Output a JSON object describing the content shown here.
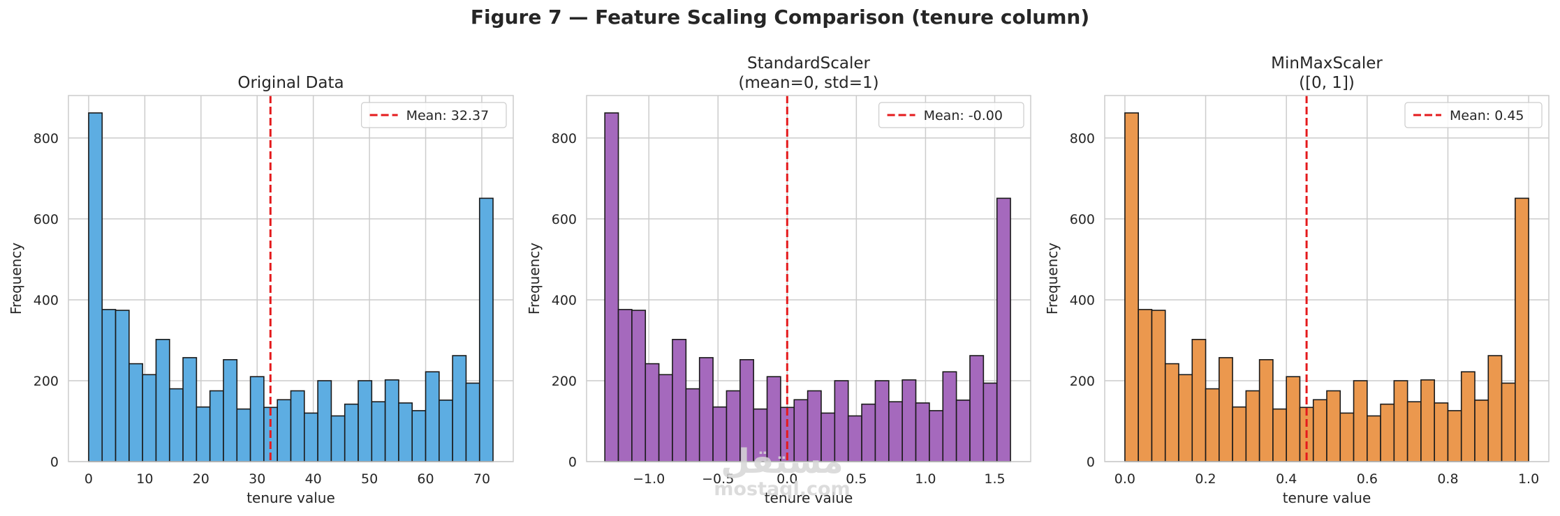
{
  "figure_title": "Figure 7 — Feature Scaling Comparison (tenure column)",
  "watermark": {
    "arabic": "مستقل",
    "latin": "mostaql.com"
  },
  "colors": {
    "mean_line": "#e41a1c",
    "grid": "#cccccc",
    "axes_edge": "#cccccc",
    "bar_edge": "#1a1a1a"
  },
  "chart_data": [
    {
      "type": "bar",
      "title": "Original Data",
      "xlabel": "tenure value",
      "ylabel": "Frequency",
      "color": "#5dade2",
      "xlim": [
        -3.6,
        75.6
      ],
      "ylim": [
        0,
        905
      ],
      "xticks": [
        0,
        10,
        20,
        30,
        40,
        50,
        60,
        70
      ],
      "xtick_labels": [
        "0",
        "10",
        "20",
        "30",
        "40",
        "50",
        "60",
        "70"
      ],
      "yticks": [
        0,
        200,
        400,
        600,
        800
      ],
      "ytick_labels": [
        "0",
        "200",
        "400",
        "600",
        "800"
      ],
      "bin_start": 0,
      "bin_end": 72,
      "counts": [
        862,
        376,
        374,
        242,
        215,
        302,
        180,
        257,
        135,
        175,
        252,
        130,
        210,
        134,
        153,
        175,
        120,
        200,
        113,
        142,
        200,
        148,
        202,
        145,
        126,
        222,
        152,
        262,
        194,
        651
      ],
      "mean": 32.37,
      "legend": "Mean: 32.37",
      "legend_loc": "upper right"
    },
    {
      "type": "bar",
      "title": "StandardScaler\n(mean=0, std=1)",
      "xlabel": "tenure value",
      "ylabel": "Frequency",
      "color": "#a569bd",
      "xlim": [
        -1.45,
        1.76
      ],
      "ylim": [
        0,
        905
      ],
      "xticks": [
        -1.0,
        -0.5,
        0.0,
        0.5,
        1.0,
        1.5
      ],
      "xtick_labels": [
        "−1.0",
        "−0.5",
        "0.0",
        "0.5",
        "1.0",
        "1.5"
      ],
      "yticks": [
        0,
        200,
        400,
        600,
        800
      ],
      "ytick_labels": [
        "0",
        "200",
        "400",
        "600",
        "800"
      ],
      "bin_start": -1.318,
      "bin_end": 1.614,
      "counts": [
        862,
        376,
        374,
        242,
        215,
        302,
        180,
        257,
        135,
        175,
        252,
        130,
        210,
        134,
        153,
        175,
        120,
        200,
        113,
        142,
        200,
        148,
        202,
        145,
        126,
        222,
        152,
        262,
        194,
        651
      ],
      "mean": 0.0,
      "legend": "Mean: -0.00",
      "legend_loc": "upper right"
    },
    {
      "type": "bar",
      "title": "MinMaxScaler\n([0, 1])",
      "xlabel": "tenure value",
      "ylabel": "Frequency",
      "color": "#eb984e",
      "xlim": [
        -0.05,
        1.05
      ],
      "ylim": [
        0,
        905
      ],
      "xticks": [
        0.0,
        0.2,
        0.4,
        0.6,
        0.8,
        1.0
      ],
      "xtick_labels": [
        "0.0",
        "0.2",
        "0.4",
        "0.6",
        "0.8",
        "1.0"
      ],
      "yticks": [
        0,
        200,
        400,
        600,
        800
      ],
      "ytick_labels": [
        "0",
        "200",
        "400",
        "600",
        "800"
      ],
      "bin_start": 0,
      "bin_end": 1,
      "counts": [
        862,
        376,
        374,
        242,
        215,
        302,
        180,
        257,
        135,
        175,
        252,
        130,
        210,
        134,
        153,
        175,
        120,
        200,
        113,
        142,
        200,
        148,
        202,
        145,
        126,
        222,
        152,
        262,
        194,
        651
      ],
      "mean": 0.45,
      "legend": "Mean: 0.45",
      "legend_loc": "upper right"
    }
  ]
}
